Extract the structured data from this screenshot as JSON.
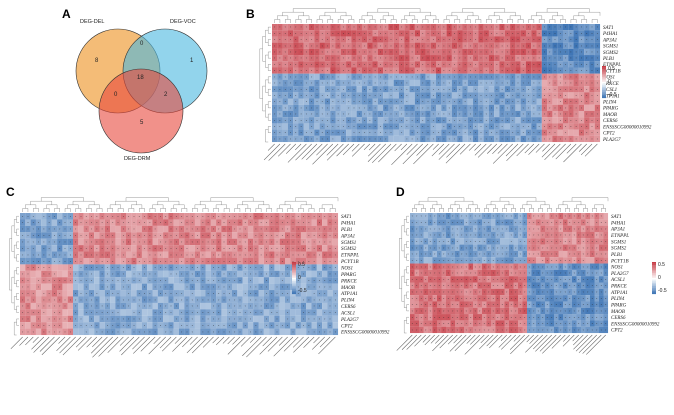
{
  "panels": {
    "A": {
      "letter": "A",
      "sets": [
        {
          "name": "DEG-DEL",
          "color": "#f0a64a"
        },
        {
          "name": "DEG-VOC",
          "color": "#4ab8e0"
        },
        {
          "name": "DEG-DRM",
          "color": "#e8473c"
        }
      ],
      "counts": {
        "del_only": "8",
        "voc_only": "1",
        "drm_only": "5",
        "del_voc": "0",
        "del_drm": "0",
        "voc_drm": "2",
        "all": "18"
      }
    },
    "B": {
      "letter": "B",
      "genes": [
        "SAT1",
        "P4HA1",
        "AP3A1",
        "SGMS1",
        "SGMS2",
        "PLB1",
        "ETNPPL",
        "PCYT1B",
        "NOS1",
        "PRKCE",
        "ACSL1",
        "ATP1A1",
        "PLIN4",
        "PPARG",
        "MAOB",
        "CERS6",
        "ENSSSCG00000010992",
        "CPT2",
        "PLA2G7"
      ],
      "legend": [
        "0.5",
        "0",
        "-0.5"
      ]
    },
    "C": {
      "letter": "C",
      "genes": [
        "SAT1",
        "P4HA1",
        "PLB1",
        "AP3A1",
        "SGMS1",
        "SGMS2",
        "ETNPPL",
        "PCYT1B",
        "NOS1",
        "PPARG",
        "PRKCE",
        "MAOB",
        "ATP1A1",
        "PLIN4",
        "CERS6",
        "ACSL1",
        "PLA2G7",
        "CPT2",
        "ENSSSCG00000010992"
      ],
      "legend": [
        "0.5",
        "0",
        "-0.5"
      ]
    },
    "D": {
      "letter": "D",
      "genes": [
        "SAT1",
        "P4HA1",
        "AP3A1",
        "ETNPPL",
        "SGMS1",
        "SGMS2",
        "PLB1",
        "PCYT1B",
        "NOS1",
        "PLA2G7",
        "ACSL1",
        "PRKCE",
        "ATP1A1",
        "PLIN4",
        "PPARG",
        "MAOB",
        "CERS6",
        "ENSSSCG00000010992",
        "CPT2"
      ],
      "legend": [
        "0.5",
        "0",
        "-0.5"
      ]
    }
  }
}
